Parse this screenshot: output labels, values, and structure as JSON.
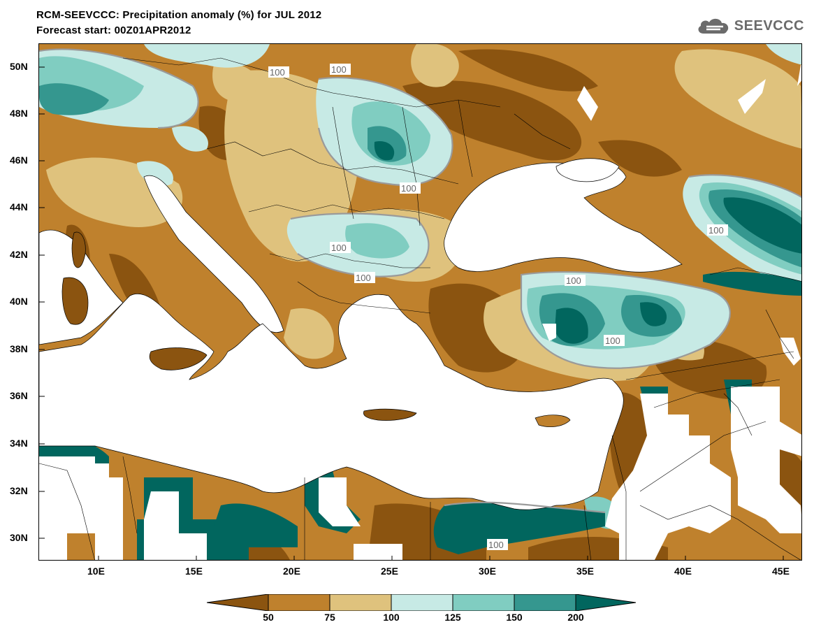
{
  "header": {
    "title_line1": "RCM-SEEVCCC: Precipitation anomaly (%) for JUL 2012",
    "title_line2": "Forecast start: 00Z01APR2012"
  },
  "logo": {
    "text": "SEEVCCC",
    "icon": "cloud-logo-icon"
  },
  "map": {
    "lat_labels": [
      "50N",
      "48N",
      "46N",
      "44N",
      "42N",
      "40N",
      "38N",
      "36N",
      "34N",
      "32N",
      "30N"
    ],
    "lon_labels": [
      "10E",
      "15E",
      "20E",
      "25E",
      "30E",
      "35E",
      "40E",
      "45E"
    ],
    "contour_labels": [
      "100",
      "100",
      "100",
      "100",
      "100",
      "100",
      "100",
      "100",
      "100"
    ]
  },
  "colorbar": {
    "tick_labels": [
      "50",
      "75",
      "100",
      "125",
      "150",
      "200"
    ],
    "colors": {
      "below_50": "#8b5410",
      "c50_75": "#bf812d",
      "c75_100": "#dfc27d",
      "c100_125": "#c7eae5",
      "c125_150": "#80cdc1",
      "c150_200": "#35978f",
      "above_200": "#01665e"
    }
  }
}
